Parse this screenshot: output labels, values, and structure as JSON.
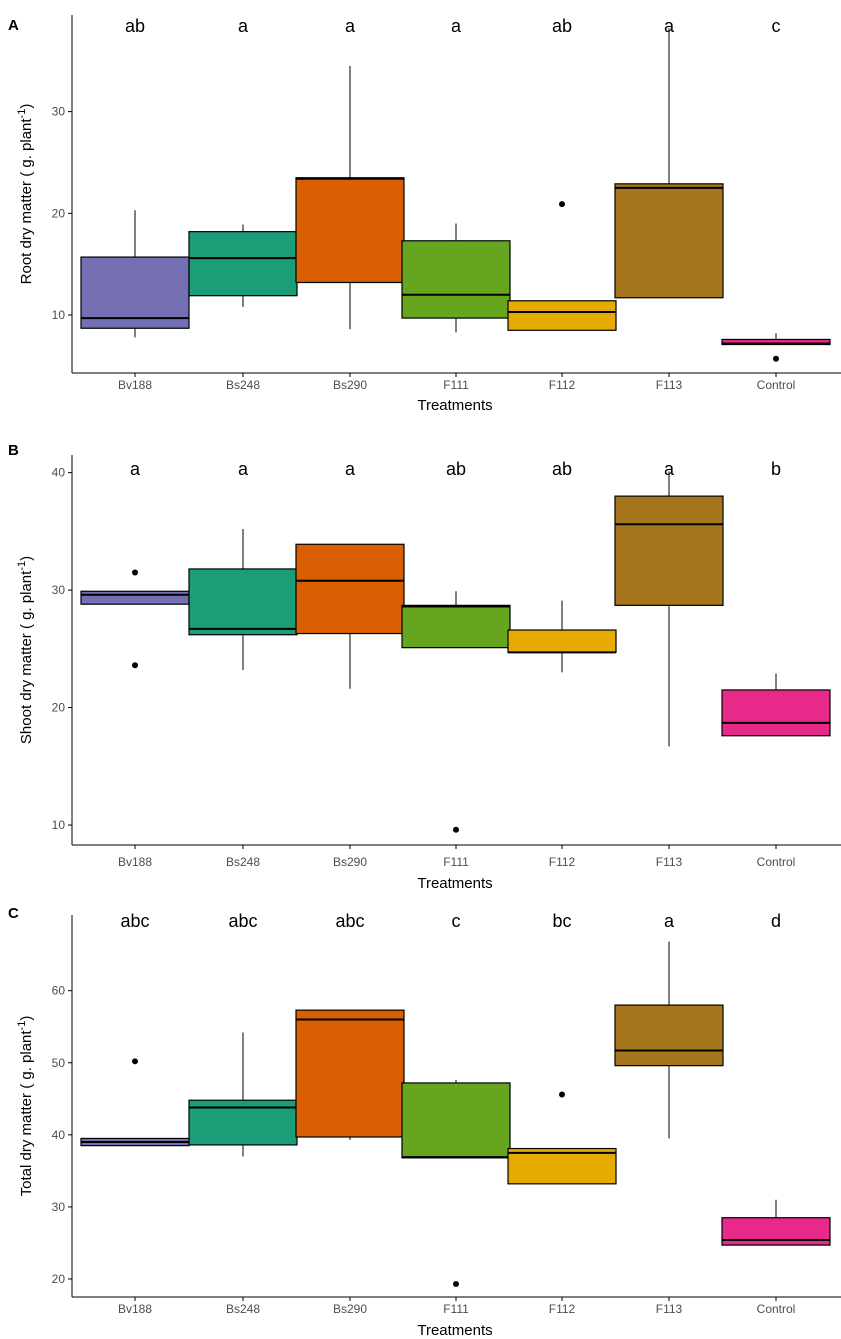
{
  "chart_data": [
    {
      "type": "boxplot",
      "panel": "A",
      "xlabel": "Treatments",
      "ylabel_main": "Root dry matter ( g. plant",
      "ylabel_sup": "-1",
      "ylabel_close": ")",
      "ylim": [
        4.3,
        39.5
      ],
      "yticks": [
        "10",
        "20",
        "30"
      ],
      "categories": [
        "Bv188",
        "Bs248",
        "Bs290",
        "F111",
        "F112",
        "F113",
        "Control"
      ],
      "letters": [
        "ab",
        "a",
        "a",
        "a",
        "ab",
        "a",
        "c"
      ],
      "colors": [
        "#7570b3",
        "#1b9e77",
        "#d95f02",
        "#66a61e",
        "#e6ab02",
        "#a6761d",
        "#e7298a"
      ],
      "boxes": [
        {
          "min": 7.8,
          "q1": 8.7,
          "median": 9.7,
          "q3": 15.7,
          "max": 20.3,
          "outliers": []
        },
        {
          "min": 10.8,
          "q1": 11.9,
          "median": 15.6,
          "q3": 18.2,
          "max": 18.9,
          "outliers": []
        },
        {
          "min": 8.6,
          "q1": 13.2,
          "median": 23.4,
          "q3": 23.5,
          "max": 34.5,
          "outliers": []
        },
        {
          "min": 8.3,
          "q1": 9.7,
          "median": 12.0,
          "q3": 17.3,
          "max": 19.0,
          "outliers": []
        },
        {
          "min": 8.5,
          "q1": 8.5,
          "median": 10.3,
          "q3": 11.4,
          "max": 11.4,
          "outliers": [
            20.9
          ]
        },
        {
          "min": 11.7,
          "q1": 11.7,
          "median": 22.5,
          "q3": 22.9,
          "max": 38.2,
          "outliers": []
        },
        {
          "min": 7.1,
          "q1": 7.1,
          "median": 7.2,
          "q3": 7.6,
          "max": 8.2,
          "outliers": [
            5.7
          ]
        }
      ]
    },
    {
      "type": "boxplot",
      "panel": "B",
      "xlabel": "Treatments",
      "ylabel_main": "Shoot dry matter ( g. plant",
      "ylabel_sup": "-1",
      "ylabel_close": ")",
      "ylim": [
        8.3,
        41.5
      ],
      "yticks": [
        "10",
        "20",
        "30",
        "40"
      ],
      "categories": [
        "Bv188",
        "Bs248",
        "Bs290",
        "F111",
        "F112",
        "F113",
        "Control"
      ],
      "letters": [
        "a",
        "a",
        "a",
        "ab",
        "ab",
        "a",
        "b"
      ],
      "colors": [
        "#7570b3",
        "#1b9e77",
        "#d95f02",
        "#66a61e",
        "#e6ab02",
        "#a6761d",
        "#e7298a"
      ],
      "boxes": [
        {
          "min": 28.8,
          "q1": 28.8,
          "median": 29.6,
          "q3": 29.9,
          "max": 29.9,
          "outliers": [
            31.5,
            23.6
          ]
        },
        {
          "min": 23.2,
          "q1": 26.2,
          "median": 26.7,
          "q3": 31.8,
          "max": 35.2,
          "outliers": []
        },
        {
          "min": 21.6,
          "q1": 26.3,
          "median": 30.8,
          "q3": 33.9,
          "max": 33.9,
          "outliers": []
        },
        {
          "min": 25.1,
          "q1": 25.1,
          "median": 28.6,
          "q3": 28.7,
          "max": 29.9,
          "outliers": [
            9.6
          ]
        },
        {
          "min": 23.0,
          "q1": 24.7,
          "median": 24.7,
          "q3": 26.6,
          "max": 29.1,
          "outliers": []
        },
        {
          "min": 16.7,
          "q1": 28.7,
          "median": 35.6,
          "q3": 38.0,
          "max": 40.1,
          "outliers": []
        },
        {
          "min": 17.6,
          "q1": 17.6,
          "median": 18.7,
          "q3": 21.5,
          "max": 22.9,
          "outliers": []
        }
      ]
    },
    {
      "type": "boxplot",
      "panel": "C",
      "xlabel": "Treatments",
      "ylabel_main": "Total dry matter ( g. plant",
      "ylabel_sup": "-1",
      "ylabel_close": ")",
      "ylim": [
        17.5,
        70.5
      ],
      "yticks": [
        "20",
        "30",
        "40",
        "50",
        "60"
      ],
      "categories": [
        "Bv188",
        "Bs248",
        "Bs290",
        "F111",
        "F112",
        "F113",
        "Control"
      ],
      "letters": [
        "abc",
        "abc",
        "abc",
        "c",
        "bc",
        "a",
        "d"
      ],
      "colors": [
        "#7570b3",
        "#1b9e77",
        "#d95f02",
        "#66a61e",
        "#e6ab02",
        "#a6761d",
        "#e7298a"
      ],
      "boxes": [
        {
          "min": 38.5,
          "q1": 38.5,
          "median": 39.0,
          "q3": 39.5,
          "max": 39.5,
          "outliers": [
            50.2
          ]
        },
        {
          "min": 37.0,
          "q1": 38.6,
          "median": 43.8,
          "q3": 44.8,
          "max": 54.2,
          "outliers": []
        },
        {
          "min": 39.3,
          "q1": 39.7,
          "median": 56.0,
          "q3": 57.3,
          "max": 57.3,
          "outliers": []
        },
        {
          "min": 36.8,
          "q1": 36.8,
          "median": 36.9,
          "q3": 47.2,
          "max": 47.6,
          "outliers": [
            19.3
          ]
        },
        {
          "min": 33.2,
          "q1": 33.2,
          "median": 37.5,
          "q3": 38.1,
          "max": 38.1,
          "outliers": [
            45.6
          ]
        },
        {
          "min": 39.5,
          "q1": 49.6,
          "median": 51.7,
          "q3": 58.0,
          "max": 66.8,
          "outliers": []
        },
        {
          "min": 24.7,
          "q1": 24.7,
          "median": 25.4,
          "q3": 28.5,
          "max": 31.0,
          "outliers": []
        }
      ]
    }
  ]
}
